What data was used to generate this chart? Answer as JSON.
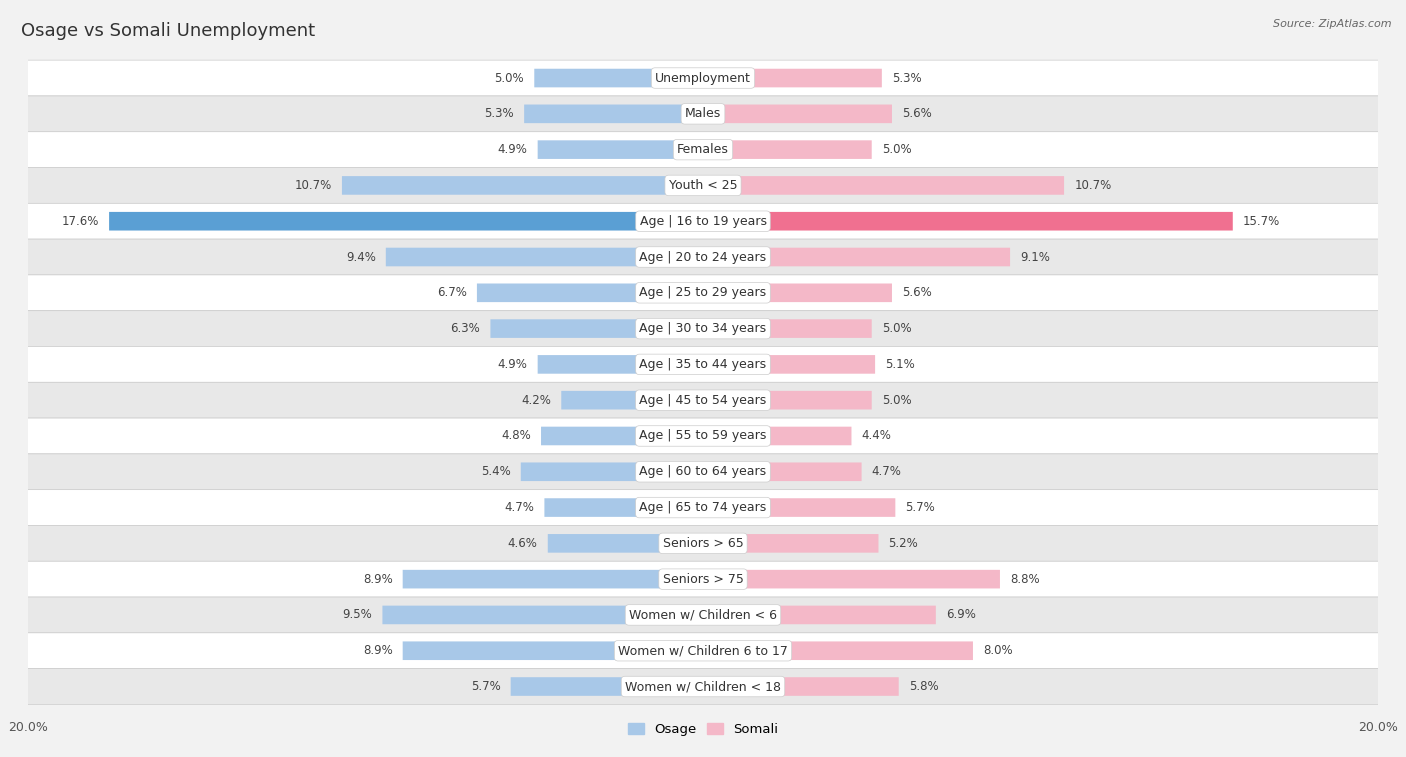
{
  "title": "Osage vs Somali Unemployment",
  "source": "Source: ZipAtlas.com",
  "categories": [
    "Unemployment",
    "Males",
    "Females",
    "Youth < 25",
    "Age | 16 to 19 years",
    "Age | 20 to 24 years",
    "Age | 25 to 29 years",
    "Age | 30 to 34 years",
    "Age | 35 to 44 years",
    "Age | 45 to 54 years",
    "Age | 55 to 59 years",
    "Age | 60 to 64 years",
    "Age | 65 to 74 years",
    "Seniors > 65",
    "Seniors > 75",
    "Women w/ Children < 6",
    "Women w/ Children 6 to 17",
    "Women w/ Children < 18"
  ],
  "osage_values": [
    5.0,
    5.3,
    4.9,
    10.7,
    17.6,
    9.4,
    6.7,
    6.3,
    4.9,
    4.2,
    4.8,
    5.4,
    4.7,
    4.6,
    8.9,
    9.5,
    8.9,
    5.7
  ],
  "somali_values": [
    5.3,
    5.6,
    5.0,
    10.7,
    15.7,
    9.1,
    5.6,
    5.0,
    5.1,
    5.0,
    4.4,
    4.7,
    5.7,
    5.2,
    8.8,
    6.9,
    8.0,
    5.8
  ],
  "osage_color": "#a8c8e8",
  "somali_color": "#f4b8c8",
  "osage_highlight_color": "#5a9fd4",
  "somali_highlight_color": "#f07090",
  "highlight_index": 4,
  "bar_height": 0.52,
  "max_value": 20.0,
  "background_color": "#f2f2f2",
  "row_bg_color": "#ffffff",
  "row_alt_bg_color": "#e8e8e8",
  "title_fontsize": 13,
  "label_fontsize": 9,
  "value_fontsize": 8.5,
  "legend_osage": "Osage",
  "legend_somali": "Somali"
}
